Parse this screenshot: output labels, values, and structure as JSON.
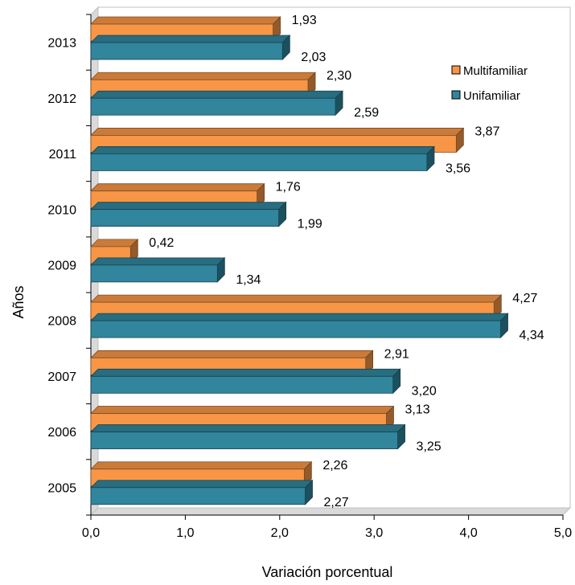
{
  "chart_data": {
    "type": "bar",
    "orientation": "horizontal",
    "style": "3d",
    "categories": [
      "2013",
      "2012",
      "2011",
      "2010",
      "2009",
      "2008",
      "2007",
      "2006",
      "2005"
    ],
    "series": [
      {
        "name": "Multifamiliar",
        "color": "#f79646",
        "values": [
          1.93,
          2.3,
          3.87,
          1.76,
          0.42,
          4.27,
          2.91,
          3.13,
          2.26
        ],
        "labels": [
          "1,93",
          "2,30",
          "3,87",
          "1,76",
          "0,42",
          "4,27",
          "2,91",
          "3,13",
          "2,26"
        ]
      },
      {
        "name": "Unifamiliar",
        "color": "#31859c",
        "values": [
          2.03,
          2.59,
          3.56,
          1.99,
          1.34,
          4.34,
          3.2,
          3.25,
          2.27
        ],
        "labels": [
          "2,03",
          "2,59",
          "3,56",
          "1,99",
          "1,34",
          "4,34",
          "3,20",
          "3,25",
          "2,27"
        ]
      }
    ],
    "xlabel": "Variación porcentual",
    "ylabel": "Años",
    "xlim": [
      0,
      5
    ],
    "x_ticks": [
      "0,0",
      "1,0",
      "2,0",
      "3,0",
      "4,0",
      "5,0"
    ],
    "legend_position": "top-right",
    "grid": false
  }
}
